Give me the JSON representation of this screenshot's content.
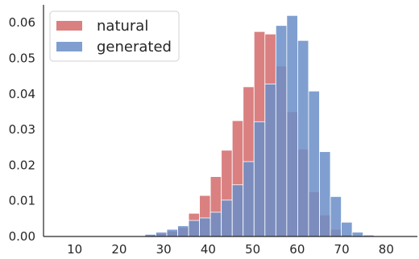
{
  "chart_data": {
    "type": "bar",
    "title": "",
    "xlabel": "",
    "ylabel": "",
    "xlim": [
      3,
      87
    ],
    "ylim": [
      0,
      0.065
    ],
    "grid": false,
    "legend_placement": "top-left",
    "x_ticks": [
      10,
      20,
      30,
      40,
      50,
      60,
      70,
      80
    ],
    "y_ticks": [
      0.0,
      0.01,
      0.02,
      0.03,
      0.04,
      0.05,
      0.06
    ],
    "y_tick_labels": [
      "0.00",
      "0.01",
      "0.02",
      "0.03",
      "0.04",
      "0.05",
      "0.06"
    ],
    "bin_width": 2.45,
    "series": [
      {
        "name": "natural",
        "color": "#d46a6a",
        "opacity": 0.85,
        "bins": [
          {
            "x0": 25.8,
            "value": 0.0004
          },
          {
            "x0": 28.25,
            "value": 0.0008
          },
          {
            "x0": 30.7,
            "value": 0.0015
          },
          {
            "x0": 33.15,
            "value": 0.0025
          },
          {
            "x0": 35.6,
            "value": 0.0065
          },
          {
            "x0": 38.05,
            "value": 0.0115
          },
          {
            "x0": 40.5,
            "value": 0.0168
          },
          {
            "x0": 42.95,
            "value": 0.0242
          },
          {
            "x0": 45.4,
            "value": 0.0325
          },
          {
            "x0": 47.85,
            "value": 0.042
          },
          {
            "x0": 50.3,
            "value": 0.0575
          },
          {
            "x0": 52.75,
            "value": 0.0568
          },
          {
            "x0": 55.2,
            "value": 0.0478
          },
          {
            "x0": 57.65,
            "value": 0.035
          },
          {
            "x0": 60.1,
            "value": 0.0245
          },
          {
            "x0": 62.55,
            "value": 0.0125
          },
          {
            "x0": 65.0,
            "value": 0.006
          },
          {
            "x0": 67.45,
            "value": 0.002
          },
          {
            "x0": 69.9,
            "value": 0.0005
          }
        ]
      },
      {
        "name": "generated",
        "color": "#6a8ec8",
        "opacity": 0.85,
        "bins": [
          {
            "x0": 23.35,
            "value": 0.0002
          },
          {
            "x0": 25.8,
            "value": 0.0006
          },
          {
            "x0": 28.25,
            "value": 0.0012
          },
          {
            "x0": 30.7,
            "value": 0.002
          },
          {
            "x0": 33.15,
            "value": 0.003
          },
          {
            "x0": 35.6,
            "value": 0.0045
          },
          {
            "x0": 38.05,
            "value": 0.0052
          },
          {
            "x0": 40.5,
            "value": 0.0068
          },
          {
            "x0": 42.95,
            "value": 0.0102
          },
          {
            "x0": 45.4,
            "value": 0.0145
          },
          {
            "x0": 47.85,
            "value": 0.021
          },
          {
            "x0": 50.3,
            "value": 0.0322
          },
          {
            "x0": 52.75,
            "value": 0.0428
          },
          {
            "x0": 55.2,
            "value": 0.0592
          },
          {
            "x0": 57.65,
            "value": 0.062
          },
          {
            "x0": 60.1,
            "value": 0.055
          },
          {
            "x0": 62.55,
            "value": 0.0408
          },
          {
            "x0": 65.0,
            "value": 0.0238
          },
          {
            "x0": 67.45,
            "value": 0.0112
          },
          {
            "x0": 69.9,
            "value": 0.004
          },
          {
            "x0": 72.35,
            "value": 0.0012
          },
          {
            "x0": 74.8,
            "value": 0.0004
          }
        ]
      }
    ]
  }
}
